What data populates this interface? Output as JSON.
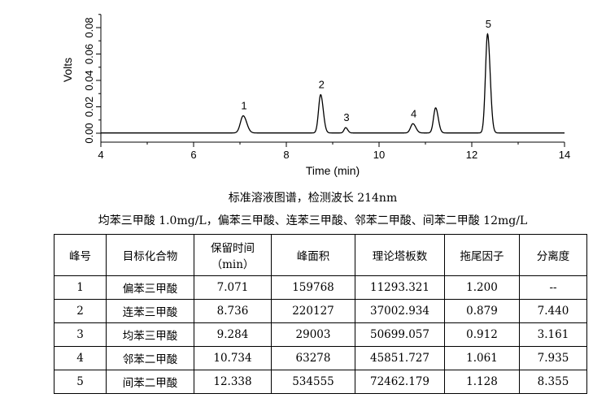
{
  "chart_data": {
    "type": "line",
    "xlabel": "Time (min)",
    "ylabel": "Volts",
    "xlim": [
      4,
      14
    ],
    "ylim": [
      -0.002,
      0.09
    ],
    "x_ticks": [
      "4",
      "6",
      "8",
      "10",
      "12",
      "14"
    ],
    "y_ticks": [
      "0.00",
      "0.02",
      "0.04",
      "0.06",
      "0.08"
    ],
    "peak_labels": [
      "1",
      "2",
      "3",
      "4",
      "5"
    ],
    "peaks": [
      {
        "label": "1",
        "x": 7.07,
        "y": 0.013
      },
      {
        "label": "2",
        "x": 8.74,
        "y": 0.029
      },
      {
        "label": "3",
        "x": 9.28,
        "y": 0.004
      },
      {
        "label": "4",
        "x": 10.73,
        "y": 0.007
      },
      {
        "label": "",
        "x": 11.22,
        "y": 0.019
      },
      {
        "label": "5",
        "x": 12.34,
        "y": 0.075
      }
    ]
  },
  "captions": {
    "line1": "标准溶液图谱，检测波长 214nm",
    "line2": "均苯三甲酸 1.0mg/L，偏苯三甲酸、连苯三甲酸、邻苯二甲酸、间苯二甲酸 12mg/L"
  },
  "table": {
    "headers": [
      "峰号",
      "目标化合物",
      "保留时间",
      "峰面积",
      "理论塔板数",
      "拖尾因子",
      "分离度"
    ],
    "header_sub": "（min）",
    "rows": [
      [
        "1",
        "偏苯三甲酸",
        "7.071",
        "159768",
        "11293.321",
        "1.200",
        "--"
      ],
      [
        "2",
        "连苯三甲酸",
        "8.736",
        "220127",
        "37002.934",
        "0.879",
        "7.440"
      ],
      [
        "3",
        "均苯三甲酸",
        "9.284",
        "29003",
        "50699.057",
        "0.912",
        "3.161"
      ],
      [
        "4",
        "邻苯二甲酸",
        "10.734",
        "63278",
        "45851.727",
        "1.061",
        "7.935"
      ],
      [
        "5",
        "间苯二甲酸",
        "12.338",
        "534555",
        "72462.179",
        "1.128",
        "8.355"
      ]
    ]
  }
}
